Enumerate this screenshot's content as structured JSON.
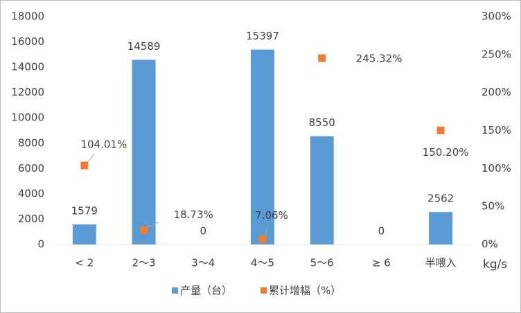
{
  "chart_data": {
    "type": "bar",
    "x_label": "kg/s",
    "categories": [
      "< 2",
      "2～3",
      "3～4",
      "4～5",
      "5～6",
      "≥ 6",
      "半喂入"
    ],
    "series": [
      {
        "name": "产量（台）",
        "color": "#5b9bd5",
        "type": "bar",
        "values": [
          1579,
          14589,
          0,
          15397,
          8550,
          0,
          2562
        ]
      },
      {
        "name": "累计增幅（%）",
        "color": "#ed7d31",
        "type": "scatter",
        "axis": "y2",
        "values": [
          104.01,
          18.73,
          null,
          7.06,
          245.32,
          null,
          150.2
        ],
        "value_labels": [
          "104.01%",
          "18.73%",
          null,
          "7.06%",
          "245.32%",
          null,
          "150.20%"
        ]
      }
    ],
    "ylim": [
      0,
      18000
    ],
    "yticks": [
      0,
      2000,
      4000,
      6000,
      8000,
      10000,
      12000,
      14000,
      16000,
      18000
    ],
    "y2lim": [
      0,
      300
    ],
    "y2ticks": [
      {
        "value": 0,
        "label": "0%"
      },
      {
        "value": 50,
        "label": "50%"
      },
      {
        "value": 100,
        "label": "100%"
      },
      {
        "value": 150,
        "label": "150%"
      },
      {
        "value": 200,
        "label": "200%"
      },
      {
        "value": 250,
        "label": "250%"
      },
      {
        "value": 300,
        "label": "300%"
      }
    ],
    "grid": false,
    "legend": "bottom"
  }
}
